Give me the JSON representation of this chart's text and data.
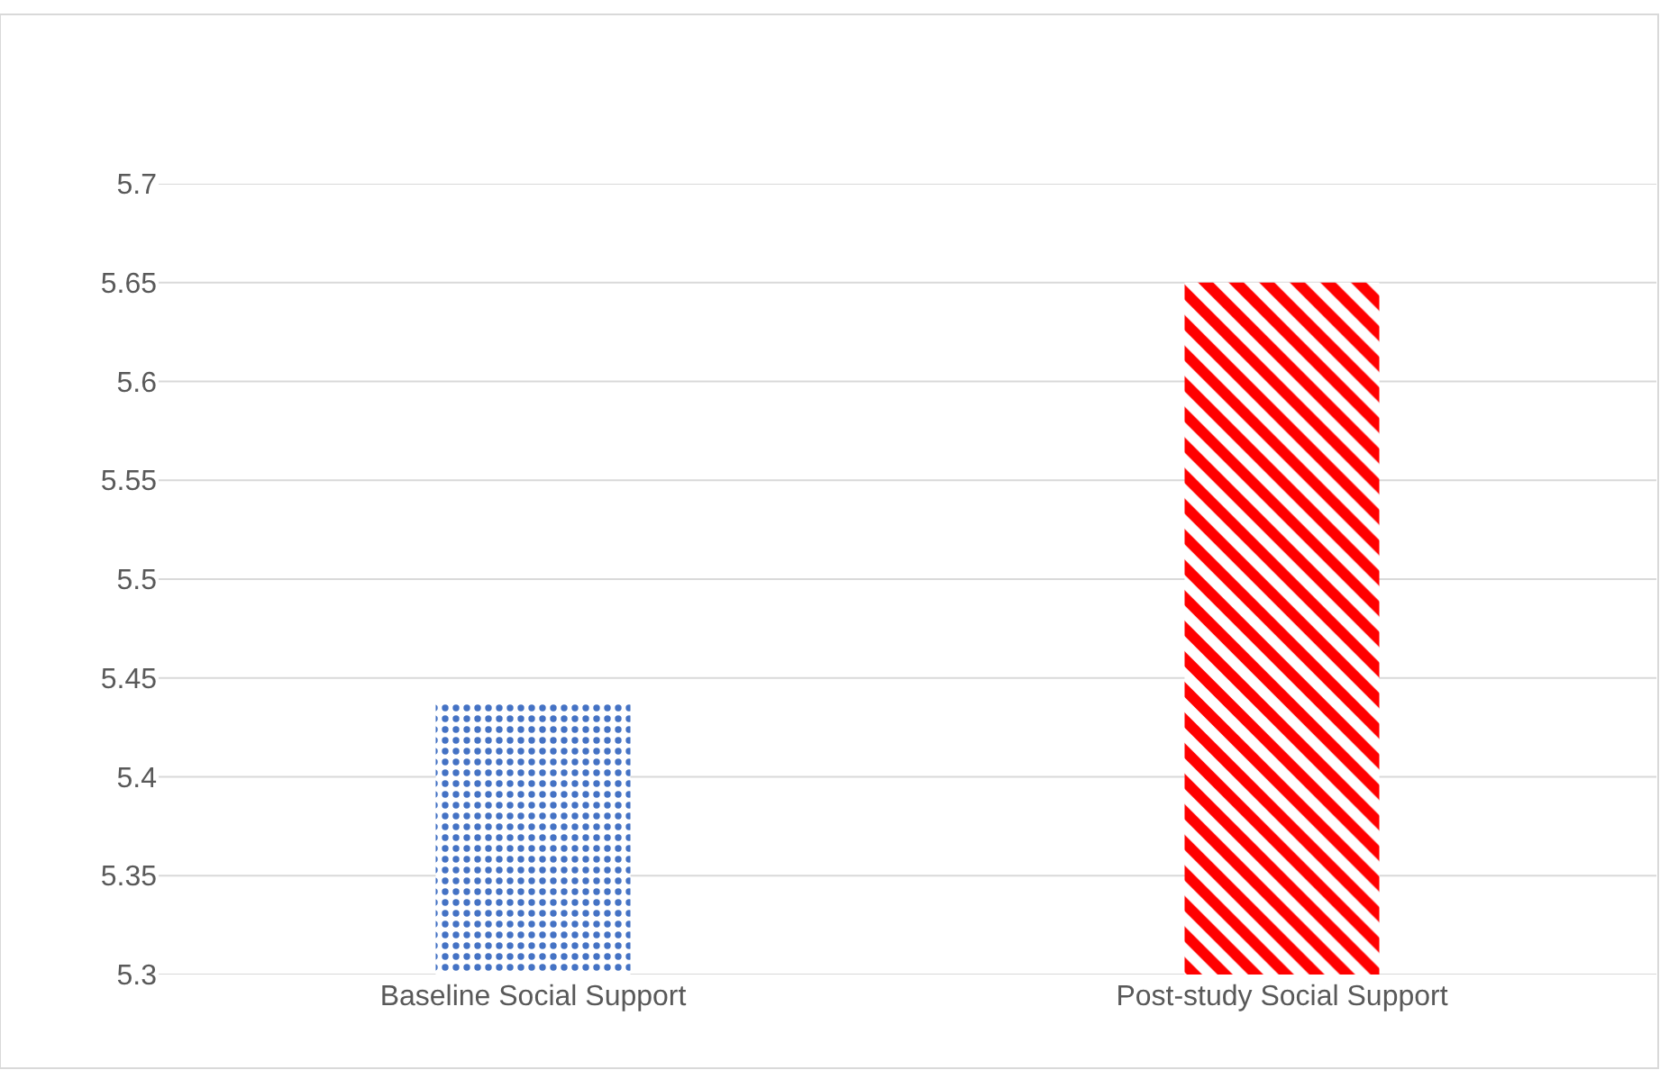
{
  "chart_data": {
    "type": "bar",
    "categories": [
      "Baseline Social Support",
      "Post-study Social Support"
    ],
    "values": [
      5.438,
      5.65
    ],
    "colors": [
      "#4472c4",
      "#ff0000"
    ],
    "ylim": [
      5.3,
      5.7
    ],
    "yticks": [
      5.3,
      5.35,
      5.4,
      5.45,
      5.5,
      5.55,
      5.6,
      5.65,
      5.7
    ],
    "grid": "y"
  }
}
